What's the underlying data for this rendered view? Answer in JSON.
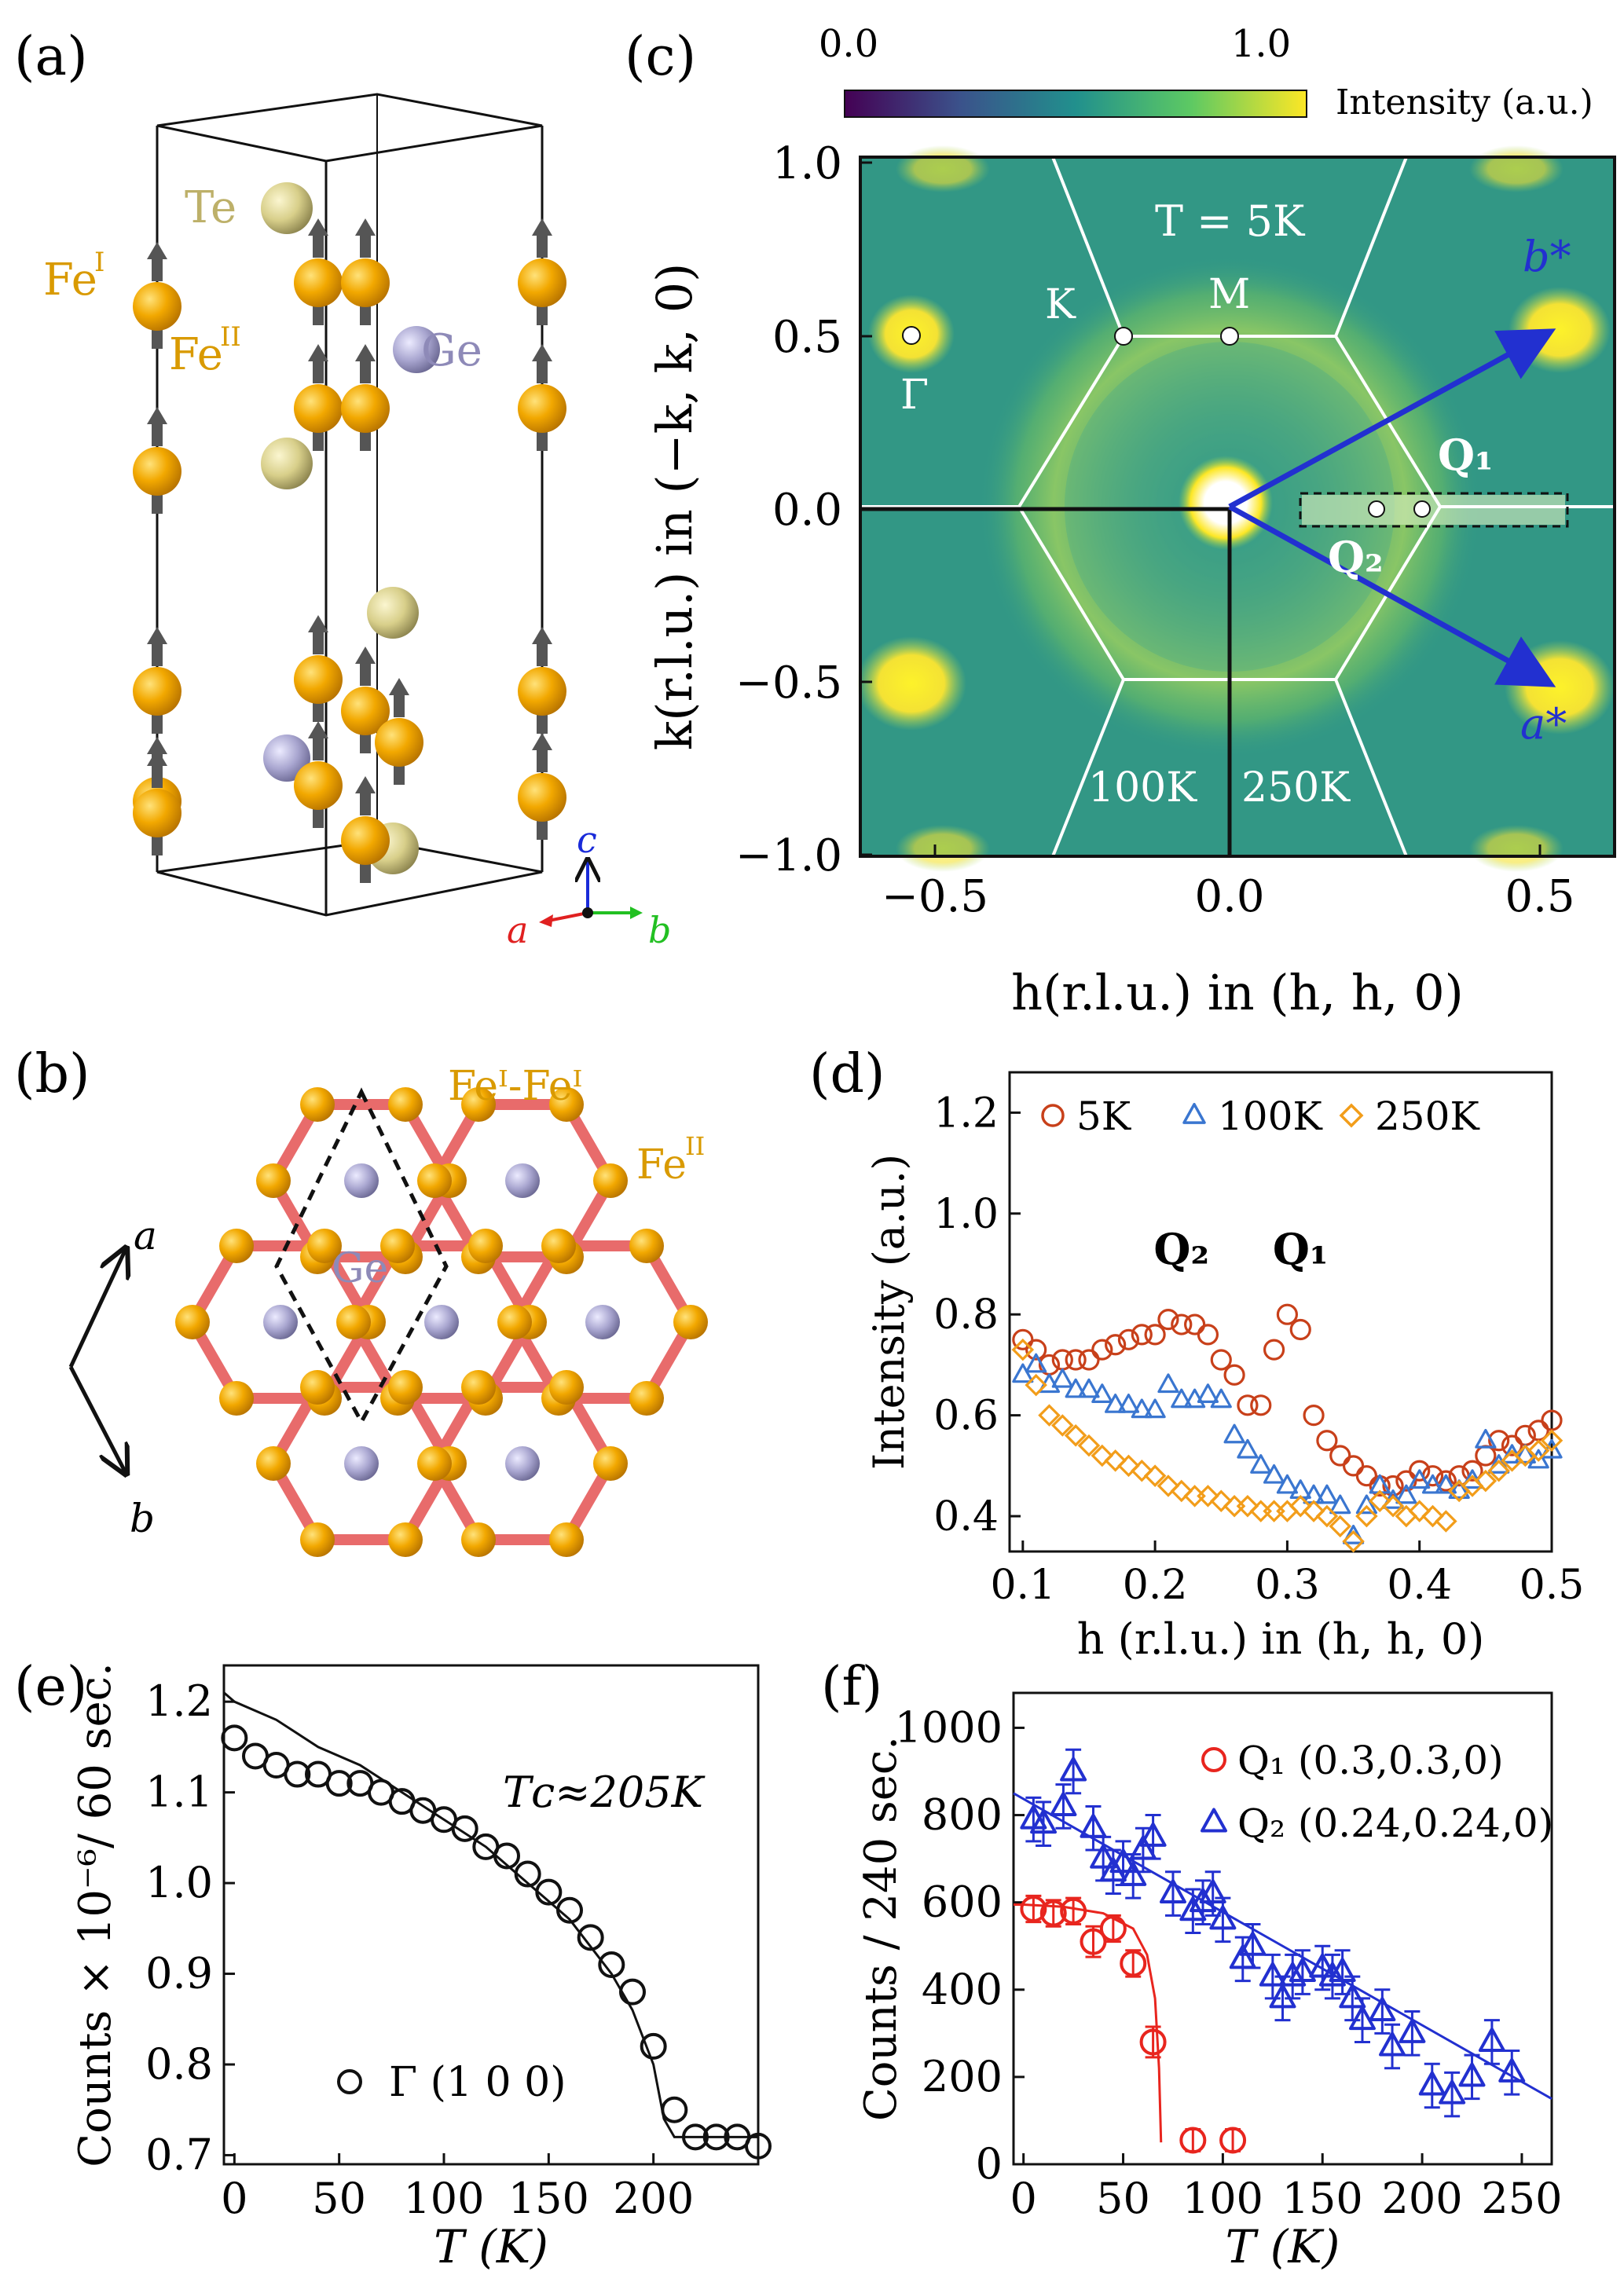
{
  "colors": {
    "fe": "#f2a800",
    "te": "#d8cf8a",
    "ge": "#a9a6d0",
    "arrow": "#555555",
    "bond": "#e86b6b",
    "red": "#e8251e",
    "blue": "#2230d0",
    "orange": "#f29d1a",
    "brown": "#c8401a",
    "mid_blue": "#3a76d0",
    "white": "#ffffff"
  },
  "panel_a": {
    "label": "(a)",
    "atoms": {
      "te": "Te",
      "fe1_base": "Fe",
      "fe1_sup": "I",
      "fe2_base": "Fe",
      "fe2_sup": "II",
      "ge": "Ge"
    },
    "axes": {
      "a": "a",
      "b": "b",
      "c": "c"
    }
  },
  "panel_b": {
    "label": "(b)",
    "fe_pair": "Feᴵ-Feᴵ",
    "fe2_base": "Fe",
    "fe2_sup": "II",
    "ge": "Ge",
    "axes": {
      "a": "a",
      "b": "b"
    }
  },
  "panel_c": {
    "label": "(c)",
    "colorbar": {
      "min_label": "0.0",
      "max_label": "1.0",
      "title": "Intensity (a.u.)"
    },
    "temperature": "T = 5K",
    "points": {
      "k": "K",
      "m": "M",
      "gamma": "Γ"
    },
    "vectors": {
      "b_star": "b*",
      "a_star": "a*",
      "q1": "Q₁",
      "q2": "Q₂"
    },
    "region_labels": {
      "left": "100K",
      "right": "250K"
    },
    "xlabel": "h(r.l.u.)  in  (h, h, 0)",
    "ylabel": "k(r.l.u.)  in  (−k, k, 0)",
    "xticks": [
      "−0.5",
      "0.0",
      "0.5"
    ],
    "yticks": [
      "1.0",
      "0.5",
      "0.0",
      "−0.5",
      "−1.0"
    ]
  },
  "panel_d": {
    "label": "(d)",
    "xlabel": "h (r.l.u.) in (h, h, 0)",
    "ylabel": "Intensity (a.u.)",
    "xticks": [
      "0.1",
      "0.2",
      "0.3",
      "0.4",
      "0.5"
    ],
    "yticks": [
      "0.4",
      "0.6",
      "0.8",
      "1.0",
      "1.2"
    ],
    "legend": [
      "5K",
      "100K",
      "250K"
    ],
    "peak_q2": "Q₂",
    "peak_q1": "Q₁"
  },
  "panel_e": {
    "label": "(e)",
    "xlabel": "T (K)",
    "ylabel": "Counts × 10⁻⁶/ 60 sec.",
    "tc_label": "Tᴄ≈205K",
    "legend": "Γ (1 0 0)",
    "xticks": [
      "0",
      "50",
      "100",
      "150",
      "200"
    ],
    "yticks": [
      "0.7",
      "0.8",
      "0.9",
      "1.0",
      "1.1",
      "1.2"
    ]
  },
  "panel_f": {
    "label": "(f)",
    "xlabel": "T (K)",
    "ylabel": "Counts / 240 sec.",
    "xticks": [
      "0",
      "50",
      "100",
      "150",
      "200",
      "250"
    ],
    "yticks": [
      "0",
      "200",
      "400",
      "600",
      "800",
      "1000"
    ],
    "legend": [
      "Q₁ (0.3,0.3,0)",
      "Q₂ (0.24,0.24,0)"
    ]
  },
  "chart_data": [
    {
      "panel": "d",
      "type": "scatter",
      "xlabel": "h (r.l.u.) in (h, h, 0)",
      "ylabel": "Intensity (a.u.)",
      "xlim": [
        0.09,
        0.5
      ],
      "ylim": [
        0.33,
        1.28
      ],
      "series": [
        {
          "name": "5K",
          "marker": "circle",
          "x": [
            0.1,
            0.11,
            0.12,
            0.13,
            0.14,
            0.15,
            0.16,
            0.17,
            0.18,
            0.19,
            0.2,
            0.21,
            0.22,
            0.23,
            0.24,
            0.25,
            0.26,
            0.27,
            0.28,
            0.29,
            0.3,
            0.31,
            0.32,
            0.33,
            0.34,
            0.35,
            0.36,
            0.37,
            0.38,
            0.39,
            0.4,
            0.41,
            0.42,
            0.43,
            0.44,
            0.45,
            0.46,
            0.47,
            0.48,
            0.49,
            0.5
          ],
          "y": [
            0.75,
            0.73,
            0.7,
            0.71,
            0.71,
            0.71,
            0.73,
            0.74,
            0.75,
            0.76,
            0.76,
            0.79,
            0.78,
            0.78,
            0.76,
            0.71,
            0.68,
            0.62,
            0.62,
            0.73,
            0.8,
            0.77,
            0.6,
            0.55,
            0.52,
            0.5,
            0.48,
            0.46,
            0.46,
            0.47,
            0.49,
            0.48,
            0.47,
            0.48,
            0.49,
            0.52,
            0.55,
            0.54,
            0.56,
            0.57,
            0.59
          ]
        },
        {
          "name": "100K",
          "marker": "triangle",
          "x": [
            0.1,
            0.11,
            0.12,
            0.13,
            0.14,
            0.15,
            0.16,
            0.17,
            0.18,
            0.19,
            0.2,
            0.21,
            0.22,
            0.23,
            0.24,
            0.25,
            0.26,
            0.27,
            0.28,
            0.29,
            0.3,
            0.31,
            0.32,
            0.33,
            0.34,
            0.35,
            0.36,
            0.37,
            0.38,
            0.39,
            0.4,
            0.41,
            0.42,
            0.43,
            0.44,
            0.45,
            0.46,
            0.47,
            0.48,
            0.49,
            0.5
          ],
          "y": [
            0.68,
            0.7,
            0.66,
            0.67,
            0.65,
            0.65,
            0.64,
            0.62,
            0.62,
            0.61,
            0.61,
            0.66,
            0.63,
            0.63,
            0.64,
            0.63,
            0.56,
            0.53,
            0.5,
            0.48,
            0.46,
            0.45,
            0.44,
            0.44,
            0.42,
            0.36,
            0.42,
            0.46,
            0.43,
            0.44,
            0.47,
            0.46,
            0.46,
            0.45,
            0.47,
            0.55,
            0.5,
            0.52,
            0.52,
            0.51,
            0.53
          ]
        },
        {
          "name": "250K",
          "marker": "diamond",
          "x": [
            0.1,
            0.11,
            0.12,
            0.13,
            0.14,
            0.15,
            0.16,
            0.17,
            0.18,
            0.19,
            0.2,
            0.21,
            0.22,
            0.23,
            0.24,
            0.25,
            0.26,
            0.27,
            0.28,
            0.29,
            0.3,
            0.31,
            0.32,
            0.33,
            0.34,
            0.35,
            0.36,
            0.37,
            0.38,
            0.39,
            0.4,
            0.41,
            0.42,
            0.43,
            0.44,
            0.45,
            0.46,
            0.47,
            0.48,
            0.49,
            0.5
          ],
          "y": [
            0.73,
            0.66,
            0.6,
            0.58,
            0.56,
            0.54,
            0.52,
            0.51,
            0.5,
            0.49,
            0.48,
            0.46,
            0.45,
            0.44,
            0.44,
            0.43,
            0.42,
            0.42,
            0.41,
            0.41,
            0.41,
            0.42,
            0.41,
            0.4,
            0.38,
            0.35,
            0.4,
            0.43,
            0.42,
            0.4,
            0.41,
            0.4,
            0.39,
            0.45,
            0.46,
            0.47,
            0.49,
            0.51,
            0.52,
            0.53,
            0.55
          ]
        }
      ]
    },
    {
      "panel": "e",
      "type": "scatter",
      "xlabel": "T (K)",
      "ylabel": "Counts × 10⁻⁶/ 60 sec.",
      "xlim": [
        -5,
        250
      ],
      "ylim": [
        0.69,
        1.24
      ],
      "series": [
        {
          "name": "Γ (1 0 0)",
          "marker": "circle",
          "x": [
            0,
            10,
            20,
            30,
            40,
            50,
            60,
            70,
            80,
            90,
            100,
            110,
            120,
            130,
            140,
            150,
            160,
            170,
            180,
            190,
            200,
            210,
            220,
            230,
            240,
            250
          ],
          "y": [
            1.16,
            1.14,
            1.13,
            1.12,
            1.12,
            1.11,
            1.11,
            1.1,
            1.09,
            1.08,
            1.07,
            1.06,
            1.04,
            1.03,
            1.01,
            0.99,
            0.97,
            0.94,
            0.91,
            0.88,
            0.82,
            0.75,
            0.72,
            0.72,
            0.72,
            0.71
          ]
        },
        {
          "name": "fit",
          "marker": "line",
          "x": [
            -5,
            0,
            20,
            40,
            60,
            80,
            100,
            120,
            140,
            160,
            180,
            190,
            200,
            205,
            210,
            250
          ],
          "y": [
            1.21,
            1.2,
            1.18,
            1.15,
            1.13,
            1.1,
            1.07,
            1.04,
            1.0,
            0.96,
            0.9,
            0.86,
            0.8,
            0.74,
            0.72,
            0.72
          ]
        }
      ]
    },
    {
      "panel": "f",
      "type": "scatter",
      "xlabel": "T (K)",
      "ylabel": "Counts / 240 sec.",
      "xlim": [
        -5,
        265
      ],
      "ylim": [
        0,
        1080
      ],
      "series": [
        {
          "name": "Q₁ (0.3,0.3,0)",
          "marker": "circle",
          "x": [
            5,
            15,
            25,
            35,
            45,
            55,
            65,
            85,
            105
          ],
          "y": [
            585,
            575,
            580,
            510,
            540,
            460,
            280,
            55,
            55
          ],
          "err": [
            30,
            30,
            30,
            35,
            30,
            30,
            35,
            25,
            25
          ]
        },
        {
          "name": "Q₂ (0.24,0.24,0)",
          "marker": "triangle",
          "x": [
            5,
            10,
            20,
            25,
            35,
            40,
            45,
            50,
            55,
            60,
            65,
            75,
            85,
            90,
            95,
            100,
            110,
            115,
            125,
            130,
            135,
            140,
            150,
            155,
            160,
            165,
            170,
            180,
            185,
            195,
            205,
            215,
            225,
            235,
            245
          ],
          "y": [
            790,
            780,
            820,
            900,
            770,
            700,
            670,
            690,
            660,
            720,
            750,
            620,
            580,
            600,
            620,
            560,
            470,
            500,
            430,
            380,
            430,
            440,
            450,
            430,
            440,
            380,
            330,
            350,
            270,
            300,
            180,
            160,
            200,
            280,
            210
          ],
          "err": [
            50,
            50,
            50,
            50,
            50,
            50,
            50,
            50,
            50,
            50,
            50,
            50,
            50,
            50,
            50,
            50,
            50,
            50,
            50,
            50,
            50,
            50,
            50,
            50,
            50,
            50,
            50,
            50,
            50,
            50,
            50,
            50,
            50,
            50,
            50
          ]
        },
        {
          "name": "Q₂ fit",
          "marker": "line",
          "x": [
            -5,
            265
          ],
          "y": [
            850,
            150
          ]
        },
        {
          "name": "Q₁ fit",
          "marker": "line",
          "x": [
            -5,
            0,
            20,
            40,
            55,
            62,
            66,
            68,
            69
          ],
          "y": [
            595,
            595,
            590,
            575,
            540,
            480,
            380,
            220,
            50
          ]
        }
      ]
    }
  ]
}
